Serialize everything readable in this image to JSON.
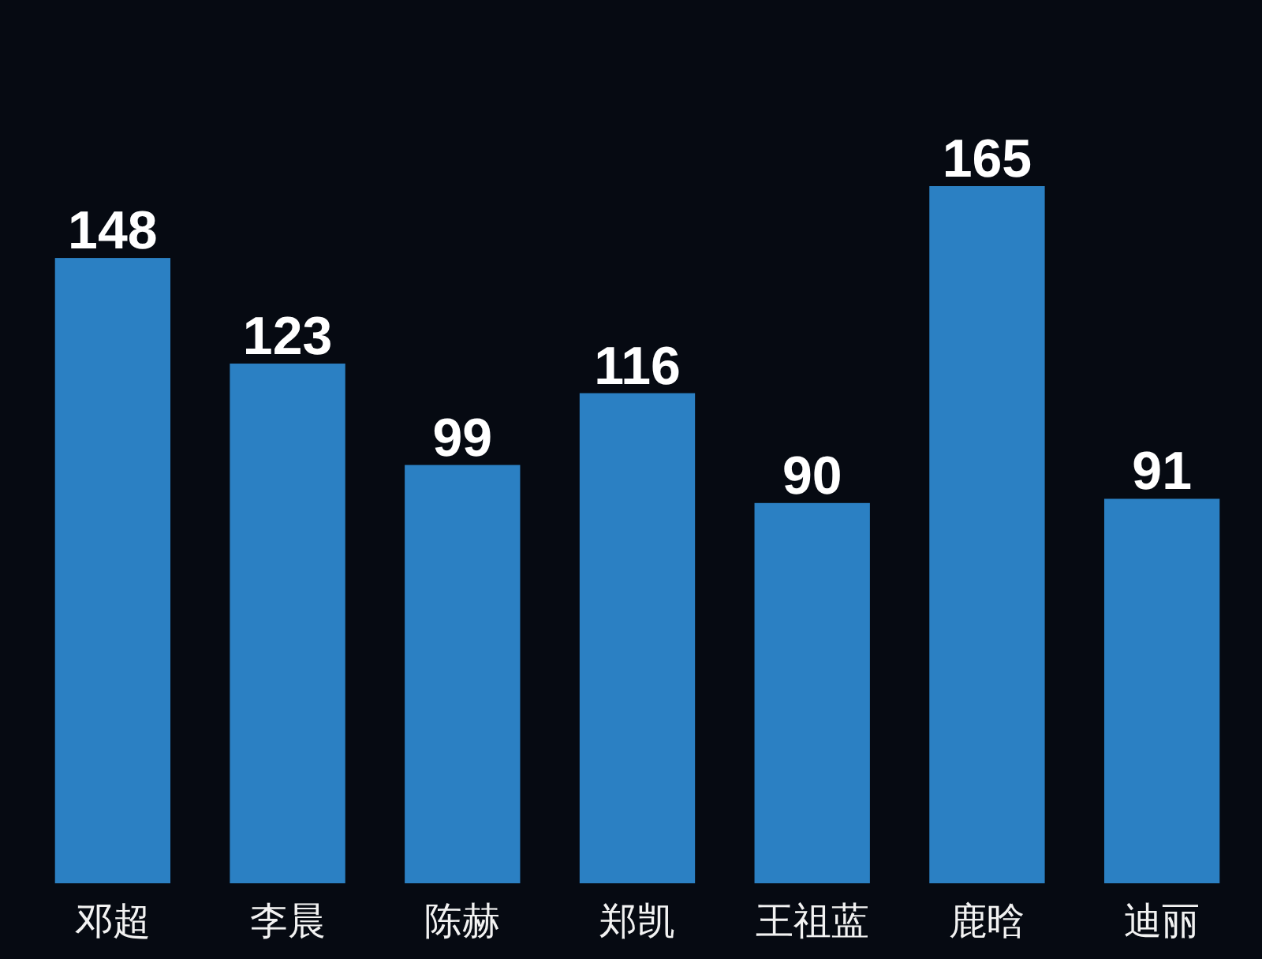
{
  "chart_data": {
    "type": "bar",
    "categories": [
      "邓超",
      "李晨",
      "陈赫",
      "郑凯",
      "王祖蓝",
      "鹿晗",
      "迪丽"
    ],
    "values": [
      148,
      123,
      99,
      116,
      90,
      165,
      91
    ],
    "color": "#2b80c3",
    "data_labels": true,
    "tick_labels": "x"
  }
}
